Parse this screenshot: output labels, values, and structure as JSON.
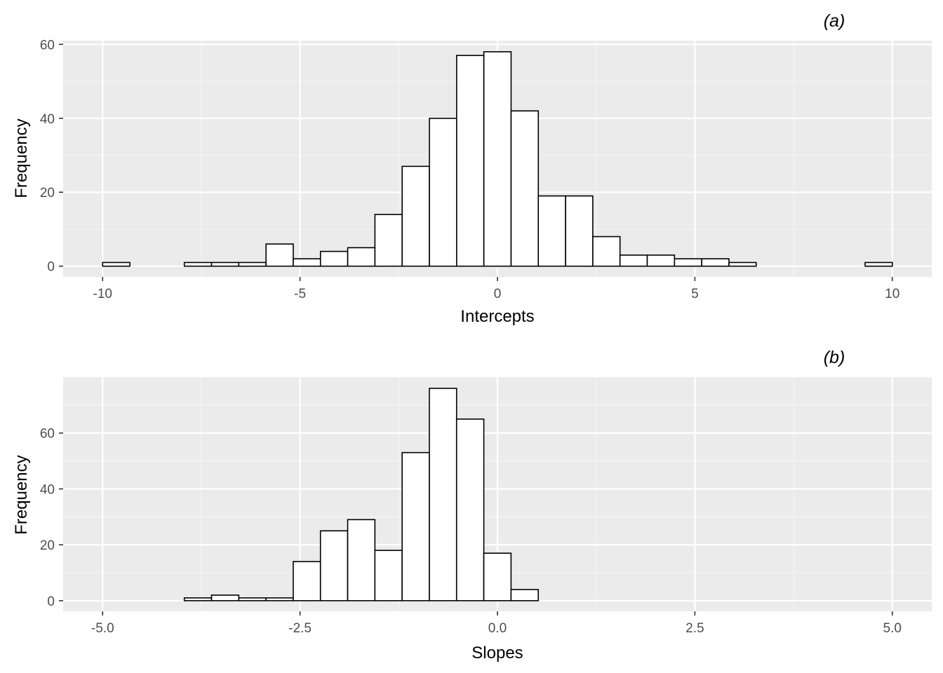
{
  "colors": {
    "panel_background": "#ebebeb",
    "grid_major": "#ffffff",
    "grid_minor": "#f4f4f4",
    "bar_fill": "#ffffff",
    "bar_outline": "#000000",
    "tick_text": "#4d4d4d",
    "tick_mark": "#333333",
    "axis_text": "#000000"
  },
  "chart_data": [
    {
      "type": "bar",
      "subtype": "histogram",
      "tag": "(a)",
      "xlabel": "Intercepts",
      "ylabel": "Frequency",
      "xlim": [
        -11,
        11
      ],
      "ylim": [
        -2.9,
        61
      ],
      "x_ticks": [
        -10,
        -5,
        0,
        5,
        10
      ],
      "x_tick_labels": [
        "-10",
        "-5",
        "0",
        "5",
        "10"
      ],
      "y_ticks": [
        0,
        20,
        40,
        60
      ],
      "y_tick_labels": [
        "0",
        "20",
        "40",
        "60"
      ],
      "bin_start": -10,
      "bin_width": 0.6897,
      "bins": 30,
      "values": [
        1,
        0,
        0,
        1,
        1,
        1,
        6,
        2,
        4,
        5,
        14,
        27,
        40,
        57,
        58,
        42,
        19,
        19,
        8,
        3,
        3,
        2,
        2,
        1,
        0,
        0,
        0,
        0,
        1,
        0
      ],
      "grid": true
    },
    {
      "type": "bar",
      "subtype": "histogram",
      "tag": "(b)",
      "xlabel": "Slopes",
      "ylabel": "Frequency",
      "xlim": [
        -5.5,
        5.5
      ],
      "ylim": [
        -3.8,
        80
      ],
      "x_ticks": [
        -5,
        -2.5,
        0,
        2.5,
        5
      ],
      "x_tick_labels": [
        "-5.0",
        "-2.5",
        "0.0",
        "2.5",
        "5.0"
      ],
      "y_ticks": [
        0,
        20,
        40,
        60
      ],
      "y_tick_labels": [
        "0",
        "20",
        "40",
        "60"
      ],
      "bin_start": -5,
      "bin_width": 0.3448,
      "bins": 29,
      "values": [
        0,
        0,
        0,
        1,
        2,
        1,
        1,
        14,
        25,
        29,
        18,
        53,
        76,
        65,
        17,
        4,
        0,
        0,
        0,
        0,
        0,
        0,
        0,
        0,
        0,
        0,
        0,
        0,
        0
      ],
      "grid": true
    }
  ]
}
